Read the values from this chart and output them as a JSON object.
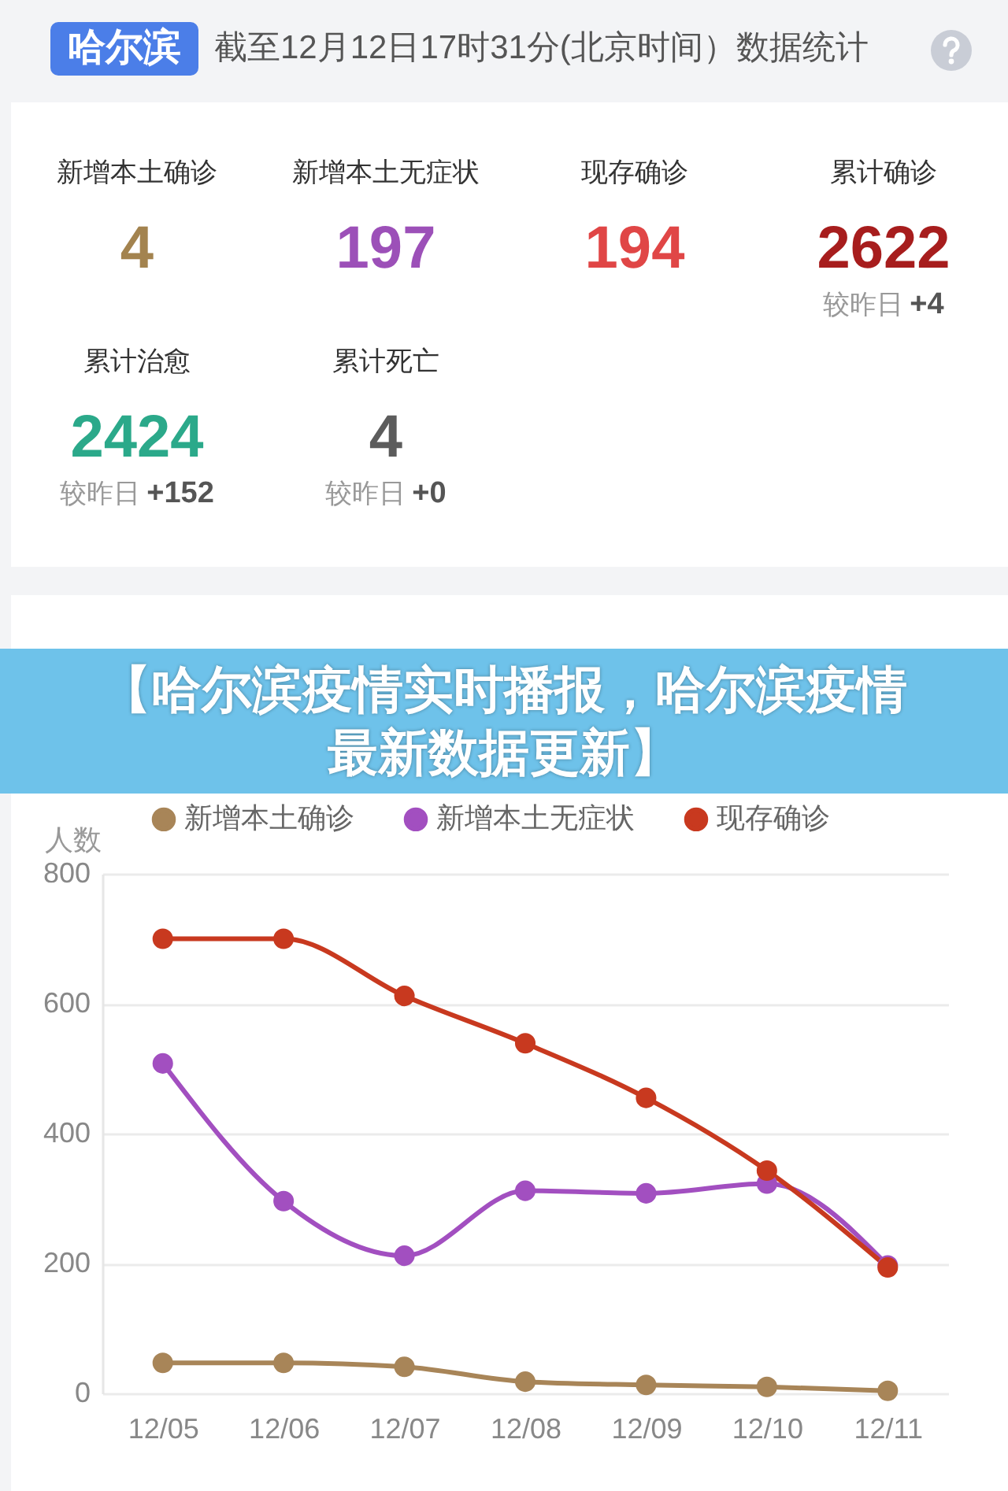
{
  "chart_data": [
    {
      "type": "other",
      "title": "哈尔滨",
      "subtitle": "截至12月12日17时31分(北京时间）数据统计",
      "categories": [
        "新增本土确诊",
        "新增本土无症状",
        "现存确诊",
        "累计确诊",
        "累计治愈",
        "累计死亡"
      ],
      "values": [
        4,
        197,
        194,
        2622,
        2424,
        4
      ],
      "data_labels": true,
      "annotations": [
        {
          "text": "较昨日 +4",
          "x": "累计确诊"
        },
        {
          "text": "较昨日 +152",
          "x": "累计治愈"
        },
        {
          "text": "较昨日 +0",
          "x": "累计死亡"
        }
      ]
    },
    {
      "type": "line",
      "title": "【哈尔滨疫情实时播报，哈尔滨疫情最新数据更新】",
      "ylabel": "人数",
      "categories": [
        "12/05",
        "12/06",
        "12/07",
        "12/08",
        "12/09",
        "12/10",
        "12/11"
      ],
      "series": [
        {
          "name": "新增本土确诊",
          "color": "#a88558",
          "values": [
            47,
            47,
            41,
            18,
            13,
            10,
            4
          ]
        },
        {
          "name": "新增本土无症状",
          "color": "#a24fc0",
          "values": [
            508,
            296,
            212,
            312,
            308,
            323,
            197
          ]
        },
        {
          "name": "现存确诊",
          "color": "#c8391f",
          "values": [
            700,
            700,
            612,
            539,
            455,
            343,
            194
          ]
        }
      ],
      "ylim": [
        0,
        800
      ],
      "yticks": [
        0,
        200,
        400,
        600,
        800
      ],
      "grid": "y",
      "legend": "top",
      "marker": "circle",
      "line_style": "solid"
    }
  ]
}
